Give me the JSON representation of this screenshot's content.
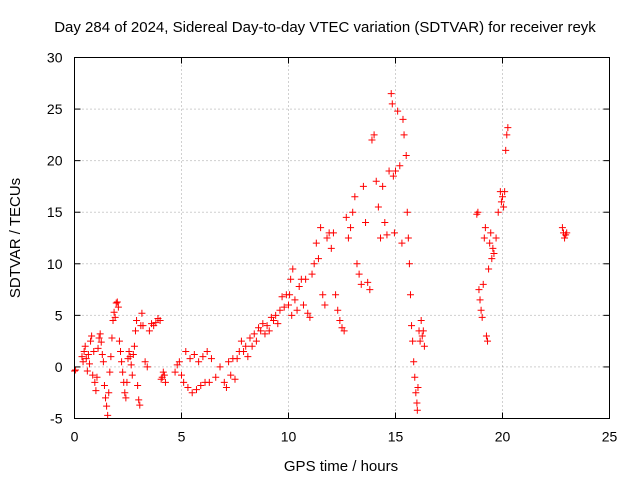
{
  "chart_data": {
    "type": "scatter",
    "title": "Day 284 of 2024, Sidereal Day-to-day VTEC variation (SDTVAR) for receiver reyk",
    "xlabel": "GPS time / hours",
    "ylabel": "SDTVAR / TECUs",
    "xlim": [
      0,
      25
    ],
    "ylim": [
      -5,
      30
    ],
    "xticks": [
      "0",
      "5",
      "10",
      "15",
      "20",
      "25"
    ],
    "yticks": [
      "-5",
      "0",
      "5",
      "10",
      "15",
      "20",
      "25",
      "30"
    ],
    "grid": true,
    "marker": "plus",
    "series": [
      {
        "name": "SDTVAR",
        "color": "#ff0000",
        "points": [
          [
            0.0,
            -0.4
          ],
          [
            0.05,
            -0.3
          ],
          [
            0.35,
            1.0
          ],
          [
            0.4,
            0.5
          ],
          [
            0.45,
            1.5
          ],
          [
            0.5,
            2.0
          ],
          [
            0.55,
            0.8
          ],
          [
            0.6,
            -0.4
          ],
          [
            0.65,
            1.2
          ],
          [
            0.7,
            0.3
          ],
          [
            0.75,
            2.5
          ],
          [
            0.8,
            3.0
          ],
          [
            0.85,
            -0.8
          ],
          [
            0.9,
            1.5
          ],
          [
            0.95,
            -1.5
          ],
          [
            1.0,
            -2.3
          ],
          [
            1.05,
            -1.0
          ],
          [
            1.1,
            1.8
          ],
          [
            1.15,
            2.8
          ],
          [
            1.2,
            3.2
          ],
          [
            1.25,
            2.4
          ],
          [
            1.3,
            1.2
          ],
          [
            1.35,
            0.5
          ],
          [
            1.4,
            -1.8
          ],
          [
            1.45,
            -3.0
          ],
          [
            1.5,
            -3.8
          ],
          [
            1.55,
            -4.7
          ],
          [
            1.6,
            -2.5
          ],
          [
            1.65,
            -0.5
          ],
          [
            1.7,
            1.0
          ],
          [
            1.75,
            2.8
          ],
          [
            1.8,
            4.5
          ],
          [
            1.85,
            5.3
          ],
          [
            1.9,
            4.8
          ],
          [
            1.95,
            6.2
          ],
          [
            2.0,
            6.3
          ],
          [
            2.05,
            5.8
          ],
          [
            2.1,
            2.5
          ],
          [
            2.15,
            1.5
          ],
          [
            2.2,
            0.5
          ],
          [
            2.25,
            -0.5
          ],
          [
            2.3,
            -1.5
          ],
          [
            2.35,
            -2.5
          ],
          [
            2.4,
            -3.0
          ],
          [
            2.45,
            -1.5
          ],
          [
            2.5,
            0.8
          ],
          [
            2.55,
            1.5
          ],
          [
            2.6,
            1.0
          ],
          [
            2.65,
            0.2
          ],
          [
            2.7,
            -0.8
          ],
          [
            2.75,
            1.2
          ],
          [
            2.8,
            2.0
          ],
          [
            2.85,
            3.5
          ],
          [
            2.9,
            4.5
          ],
          [
            2.95,
            -1.8
          ],
          [
            3.0,
            -3.2
          ],
          [
            3.05,
            -3.7
          ],
          [
            3.1,
            4.0
          ],
          [
            3.15,
            5.2
          ],
          [
            3.2,
            4.0
          ],
          [
            3.3,
            0.5
          ],
          [
            3.4,
            0.0
          ],
          [
            3.5,
            3.5
          ],
          [
            3.6,
            4.2
          ],
          [
            3.7,
            4.0
          ],
          [
            3.8,
            4.3
          ],
          [
            3.9,
            4.7
          ],
          [
            4.0,
            4.5
          ],
          [
            4.05,
            -1.2
          ],
          [
            4.1,
            -1.0
          ],
          [
            4.15,
            -0.5
          ],
          [
            4.2,
            -0.8
          ],
          [
            4.25,
            -1.5
          ],
          [
            4.7,
            -0.5
          ],
          [
            4.8,
            0.2
          ],
          [
            4.9,
            0.5
          ],
          [
            5.0,
            -0.8
          ],
          [
            5.1,
            -1.5
          ],
          [
            5.2,
            1.5
          ],
          [
            5.3,
            -2.0
          ],
          [
            5.4,
            0.8
          ],
          [
            5.5,
            -2.5
          ],
          [
            5.6,
            1.2
          ],
          [
            5.7,
            -2.2
          ],
          [
            5.8,
            0.5
          ],
          [
            5.9,
            -1.8
          ],
          [
            6.0,
            1.0
          ],
          [
            6.1,
            -1.5
          ],
          [
            6.2,
            1.5
          ],
          [
            6.3,
            -1.5
          ],
          [
            6.4,
            0.8
          ],
          [
            6.6,
            -1.0
          ],
          [
            6.8,
            0.0
          ],
          [
            7.0,
            -1.5
          ],
          [
            7.1,
            -2.0
          ],
          [
            7.2,
            0.5
          ],
          [
            7.3,
            -0.8
          ],
          [
            7.4,
            0.8
          ],
          [
            7.5,
            -1.2
          ],
          [
            7.6,
            0.8
          ],
          [
            7.7,
            1.5
          ],
          [
            7.8,
            2.5
          ],
          [
            7.9,
            1.5
          ],
          [
            8.0,
            2.0
          ],
          [
            8.1,
            1.0
          ],
          [
            8.2,
            2.8
          ],
          [
            8.3,
            2.0
          ],
          [
            8.4,
            3.2
          ],
          [
            8.5,
            2.5
          ],
          [
            8.6,
            3.8
          ],
          [
            8.7,
            3.5
          ],
          [
            8.8,
            4.2
          ],
          [
            8.9,
            3.2
          ],
          [
            9.0,
            4.0
          ],
          [
            9.1,
            3.5
          ],
          [
            9.2,
            4.8
          ],
          [
            9.3,
            4.5
          ],
          [
            9.4,
            5.0
          ],
          [
            9.5,
            4.2
          ],
          [
            9.6,
            5.5
          ],
          [
            9.7,
            6.8
          ],
          [
            9.8,
            5.8
          ],
          [
            9.9,
            7.0
          ],
          [
            10.0,
            6.0
          ],
          [
            10.05,
            7.0
          ],
          [
            10.1,
            8.5
          ],
          [
            10.15,
            5.0
          ],
          [
            10.2,
            9.5
          ],
          [
            10.3,
            6.5
          ],
          [
            10.4,
            5.5
          ],
          [
            10.5,
            7.8
          ],
          [
            10.6,
            8.5
          ],
          [
            10.7,
            6.0
          ],
          [
            10.8,
            8.5
          ],
          [
            10.9,
            5.2
          ],
          [
            11.0,
            4.8
          ],
          [
            11.1,
            9.0
          ],
          [
            11.2,
            10.0
          ],
          [
            11.3,
            12.0
          ],
          [
            11.4,
            10.5
          ],
          [
            11.5,
            13.5
          ],
          [
            11.6,
            7.0
          ],
          [
            11.7,
            6.0
          ],
          [
            11.8,
            12.5
          ],
          [
            11.9,
            13.0
          ],
          [
            12.0,
            11.5
          ],
          [
            12.1,
            13.0
          ],
          [
            12.2,
            7.0
          ],
          [
            12.3,
            5.5
          ],
          [
            12.4,
            4.5
          ],
          [
            12.5,
            3.8
          ],
          [
            12.6,
            3.5
          ],
          [
            12.7,
            14.5
          ],
          [
            12.8,
            12.5
          ],
          [
            12.9,
            13.5
          ],
          [
            13.0,
            15.0
          ],
          [
            13.1,
            16.5
          ],
          [
            13.2,
            10.0
          ],
          [
            13.3,
            9.0
          ],
          [
            13.4,
            8.0
          ],
          [
            13.5,
            17.5
          ],
          [
            13.6,
            14.0
          ],
          [
            13.7,
            8.2
          ],
          [
            13.8,
            7.5
          ],
          [
            13.9,
            22.0
          ],
          [
            14.0,
            22.5
          ],
          [
            14.1,
            18.0
          ],
          [
            14.2,
            15.5
          ],
          [
            14.3,
            12.5
          ],
          [
            14.4,
            17.5
          ],
          [
            14.5,
            14.0
          ],
          [
            14.6,
            12.8
          ],
          [
            14.7,
            19.0
          ],
          [
            14.8,
            26.5
          ],
          [
            14.85,
            25.5
          ],
          [
            14.9,
            18.5
          ],
          [
            14.95,
            13.0
          ],
          [
            15.0,
            19.0
          ],
          [
            15.1,
            24.8
          ],
          [
            15.2,
            19.5
          ],
          [
            15.3,
            12.0
          ],
          [
            15.35,
            24.0
          ],
          [
            15.4,
            22.5
          ],
          [
            15.5,
            20.5
          ],
          [
            15.55,
            15.0
          ],
          [
            15.6,
            12.5
          ],
          [
            15.65,
            10.0
          ],
          [
            15.7,
            7.0
          ],
          [
            15.75,
            4.0
          ],
          [
            15.8,
            2.5
          ],
          [
            15.85,
            0.5
          ],
          [
            15.9,
            -1.0
          ],
          [
            15.95,
            -2.5
          ],
          [
            16.0,
            -3.5
          ],
          [
            16.02,
            -4.2
          ],
          [
            16.05,
            -2.0
          ],
          [
            16.1,
            3.5
          ],
          [
            16.15,
            2.5
          ],
          [
            16.2,
            4.5
          ],
          [
            16.25,
            3.0
          ],
          [
            16.3,
            3.5
          ],
          [
            16.35,
            2.0
          ],
          [
            18.8,
            14.8
          ],
          [
            18.85,
            15.0
          ],
          [
            18.9,
            7.5
          ],
          [
            18.95,
            6.5
          ],
          [
            19.0,
            5.5
          ],
          [
            19.05,
            4.8
          ],
          [
            19.1,
            8.0
          ],
          [
            19.15,
            12.5
          ],
          [
            19.2,
            13.5
          ],
          [
            19.25,
            3.0
          ],
          [
            19.3,
            2.5
          ],
          [
            19.35,
            9.5
          ],
          [
            19.4,
            12.0
          ],
          [
            19.45,
            13.0
          ],
          [
            19.5,
            10.5
          ],
          [
            19.55,
            11.5
          ],
          [
            19.6,
            11.0
          ],
          [
            19.7,
            12.5
          ],
          [
            19.8,
            15.0
          ],
          [
            19.9,
            17.0
          ],
          [
            19.95,
            16.0
          ],
          [
            20.0,
            16.5
          ],
          [
            20.05,
            15.5
          ],
          [
            20.1,
            17.0
          ],
          [
            20.15,
            21.0
          ],
          [
            20.2,
            22.5
          ],
          [
            20.25,
            23.2
          ],
          [
            22.8,
            13.5
          ],
          [
            22.85,
            13.0
          ],
          [
            22.9,
            12.5
          ],
          [
            22.95,
            12.8
          ],
          [
            23.0,
            13.0
          ]
        ]
      }
    ]
  }
}
